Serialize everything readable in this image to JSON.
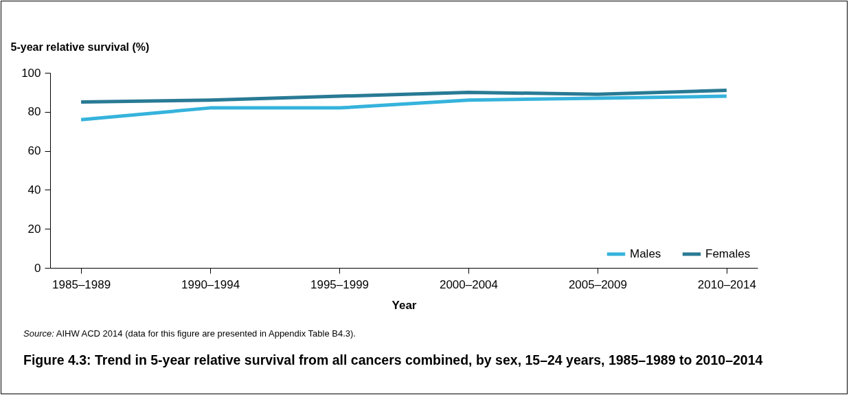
{
  "chart_data": {
    "type": "line",
    "title": "Figure 4.3: Trend in 5-year relative survival from all cancers combined, by sex, 15–24 years, 1985–1989 to 2010–2014",
    "xlabel": "Year",
    "ylabel": "5-year relative survival (%)",
    "annotations": [
      "Source: AIHW ACD 2014 (data for this figure are presented in Appendix Table B4.3)."
    ],
    "categories": [
      "1985–1989",
      "1990–1994",
      "1995–1999",
      "2000–2004",
      "2005–2009",
      "2010–2014"
    ],
    "series": [
      {
        "name": "Males",
        "color": "#35b3dc",
        "values": [
          76,
          82,
          82,
          86,
          87,
          88
        ]
      },
      {
        "name": "Females",
        "color": "#297a94",
        "values": [
          85,
          86,
          88,
          90,
          89,
          91
        ]
      }
    ],
    "ylim": [
      0,
      100
    ],
    "yticks": [
      0,
      20,
      40,
      60,
      80,
      100
    ],
    "grid": false,
    "legend": "bottom right",
    "marker": "none",
    "line_style": "solid"
  }
}
